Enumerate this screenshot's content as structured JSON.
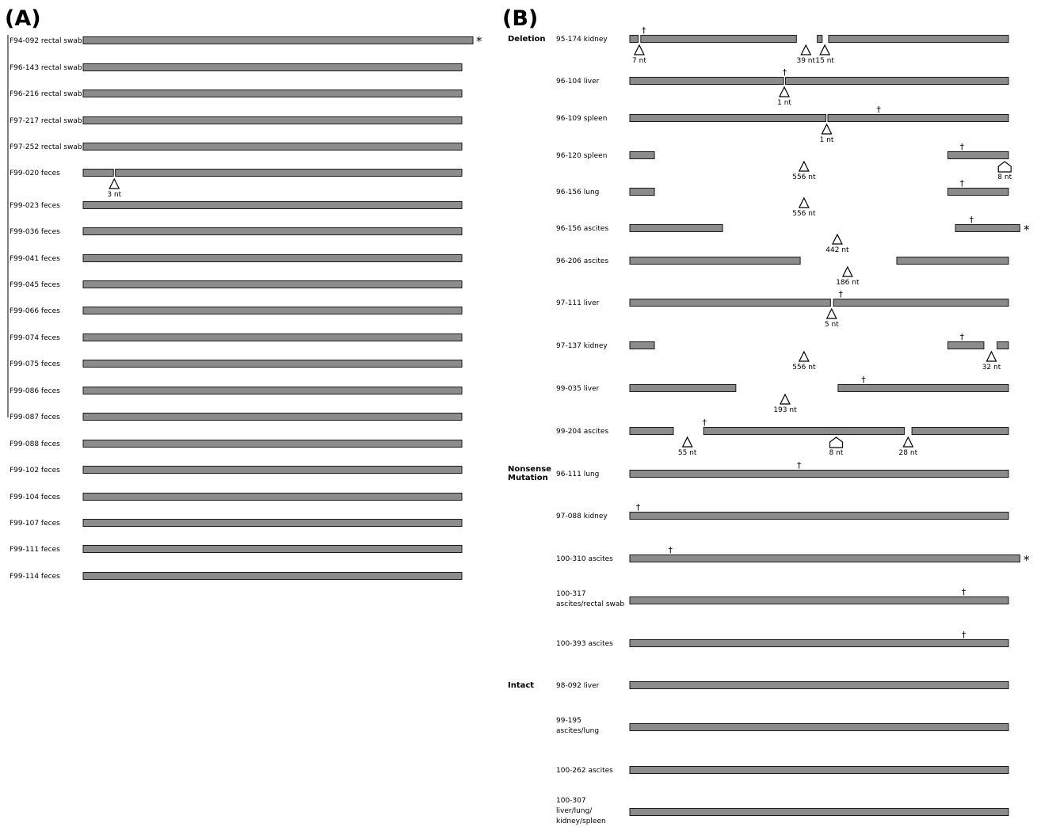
{
  "panels": [
    {
      "label": "(A)",
      "samples": [
        {
          "name": "F94-092 rectal swab",
          "segments": [
            [
              0,
              100
            ]
          ],
          "star": true,
          "deletions": []
        },
        {
          "name": "F96-143 rectal swab",
          "segments": [
            [
              0,
              100
            ]
          ],
          "deletions": []
        },
        {
          "name": "F96-216 rectal swab",
          "segments": [
            [
              0,
              100
            ]
          ],
          "deletions": []
        },
        {
          "name": "F97-217 rectal swab",
          "segments": [
            [
              0,
              100
            ]
          ],
          "deletions": []
        },
        {
          "name": "F97-252 rectal swab",
          "segments": [
            [
              0,
              100
            ]
          ],
          "deletions": []
        },
        {
          "name": "F99-020 feces",
          "segments": [
            [
              0,
              8
            ],
            [
              8.5,
              100
            ]
          ],
          "deletions": [
            {
              "pos": 8,
              "label": "3 nt",
              "shape": "triangle"
            }
          ]
        },
        {
          "name": "F99-023 feces",
          "segments": [
            [
              0,
              100
            ]
          ],
          "deletions": []
        },
        {
          "name": "F99-036 feces",
          "segments": [
            [
              0,
              100
            ]
          ],
          "deletions": []
        },
        {
          "name": "F99-041 feces",
          "segments": [
            [
              0,
              100
            ]
          ],
          "deletions": []
        },
        {
          "name": "F99-045 feces",
          "segments": [
            [
              0,
              100
            ]
          ],
          "deletions": []
        },
        {
          "name": "F99-066 feces",
          "segments": [
            [
              0,
              100
            ]
          ],
          "deletions": []
        },
        {
          "name": "F99-074 feces",
          "segments": [
            [
              0,
              100
            ]
          ],
          "deletions": []
        },
        {
          "name": "F99-075 feces",
          "segments": [
            [
              0,
              100
            ]
          ],
          "deletions": []
        },
        {
          "name": "F99-086 feces",
          "segments": [
            [
              0,
              100
            ]
          ],
          "deletions": []
        },
        {
          "name": "F99-087 feces",
          "segments": [
            [
              0,
              100
            ]
          ],
          "deletions": []
        },
        {
          "name": "F99-088 feces",
          "segments": [
            [
              0,
              100
            ]
          ],
          "deletions": []
        },
        {
          "name": "F99-102 feces",
          "segments": [
            [
              0,
              100
            ]
          ],
          "deletions": []
        },
        {
          "name": "F99-104 feces",
          "segments": [
            [
              0,
              100
            ]
          ],
          "deletions": []
        },
        {
          "name": "F99-107 feces",
          "segments": [
            [
              0,
              100
            ]
          ],
          "deletions": []
        },
        {
          "name": "F99-111 feces",
          "segments": [
            [
              0,
              100
            ]
          ],
          "deletions": []
        },
        {
          "name": "F99-114 feces",
          "segments": [
            [
              0,
              100
            ]
          ],
          "deletions": []
        }
      ]
    },
    {
      "label": "(B)",
      "groups": [
        {
          "label": [
            "Deletion"
          ],
          "first_sample": 0
        },
        {
          "label": [
            "Nonsense",
            "Mutation"
          ],
          "first_sample": 11
        },
        {
          "label": [
            "Intact"
          ],
          "first_sample": 16
        }
      ],
      "samples": [
        {
          "name": [
            "95-174 kidney"
          ],
          "segments": [
            [
              0,
              2.2
            ],
            [
              2.9,
              44
            ],
            [
              49.5,
              50.8
            ],
            [
              52.5,
              100
            ]
          ],
          "daggers": [
            3.5
          ],
          "deletions": [
            {
              "pos": 2.5,
              "label": "7 nt",
              "shape": "triangle"
            },
            {
              "pos": 46.5,
              "label": "39 nt",
              "shape": "triangle"
            },
            {
              "pos": 51.5,
              "label": "15 nt",
              "shape": "triangle"
            }
          ]
        },
        {
          "name": [
            "96-104 liver"
          ],
          "segments": [
            [
              0,
              40.6
            ],
            [
              41.1,
              100
            ]
          ],
          "daggers": [
            40.7
          ],
          "deletions": [
            {
              "pos": 40.8,
              "label": "1 nt",
              "shape": "triangle"
            }
          ]
        },
        {
          "name": [
            "96-109 spleen"
          ],
          "segments": [
            [
              0,
              51.8
            ],
            [
              52.3,
              100
            ]
          ],
          "daggers": [
            65.5
          ],
          "deletions": [
            {
              "pos": 52,
              "label": "1 nt",
              "shape": "triangle"
            }
          ]
        },
        {
          "name": [
            "96-120 spleen"
          ],
          "segments": [
            [
              0,
              6.5
            ],
            [
              84,
              100
            ]
          ],
          "daggers": [
            87.5
          ],
          "deletions": [
            {
              "pos": 46,
              "label": "556 nt",
              "shape": "triangle"
            },
            {
              "pos": 99,
              "label": "8 nt",
              "shape": "pentagon"
            }
          ]
        },
        {
          "name": [
            "96-156 lung"
          ],
          "segments": [
            [
              0,
              6.5
            ],
            [
              84,
              100
            ]
          ],
          "daggers": [
            87.5
          ],
          "deletions": [
            {
              "pos": 46,
              "label": "556 nt",
              "shape": "triangle"
            }
          ]
        },
        {
          "name": [
            "96-156 ascites"
          ],
          "segments": [
            [
              0,
              24.5
            ],
            [
              86,
              103
            ]
          ],
          "daggers": [
            90
          ],
          "star": true,
          "deletions": [
            {
              "pos": 54.8,
              "label": "442 nt",
              "shape": "triangle"
            }
          ]
        },
        {
          "name": [
            "96-206 ascites"
          ],
          "segments": [
            [
              0,
              45
            ],
            [
              70.5,
              100
            ]
          ],
          "daggers": [],
          "deletions": [
            {
              "pos": 57.5,
              "label": "186 nt",
              "shape": "triangle"
            }
          ]
        },
        {
          "name": [
            "97-111 liver"
          ],
          "segments": [
            [
              0,
              53
            ],
            [
              53.8,
              100
            ]
          ],
          "daggers": [
            55.5
          ],
          "deletions": [
            {
              "pos": 53.3,
              "label": "5 nt",
              "shape": "triangle"
            }
          ]
        },
        {
          "name": [
            "97-137 kidney"
          ],
          "segments": [
            [
              0,
              6.5
            ],
            [
              84,
              93.5
            ],
            [
              97,
              100
            ]
          ],
          "daggers": [
            87.5
          ],
          "deletions": [
            {
              "pos": 46,
              "label": "556 nt",
              "shape": "triangle"
            },
            {
              "pos": 95.5,
              "label": "32 nt",
              "shape": "triangle"
            }
          ]
        },
        {
          "name": [
            "99-035 liver"
          ],
          "segments": [
            [
              0,
              28
            ],
            [
              55,
              100
            ]
          ],
          "daggers": [
            61.5
          ],
          "deletions": [
            {
              "pos": 41,
              "label": "193 nt",
              "shape": "triangle"
            }
          ]
        },
        {
          "name": [
            "99-204 ascites"
          ],
          "segments": [
            [
              0,
              11.5
            ],
            [
              19.5,
              72.5
            ],
            [
              74.5,
              100
            ]
          ],
          "daggers": [
            19.5
          ],
          "deletions": [
            {
              "pos": 15.2,
              "label": "55 nt",
              "shape": "triangle"
            },
            {
              "pos": 54.5,
              "label": "8 nt",
              "shape": "pentagon"
            },
            {
              "pos": 73.5,
              "label": "28 nt",
              "shape": "triangle"
            }
          ]
        },
        {
          "name": [
            "96-111 lung"
          ],
          "segments": [
            [
              0,
              100
            ]
          ],
          "daggers": [
            44.5
          ],
          "deletions": []
        },
        {
          "name": [
            "97-088 kidney"
          ],
          "segments": [
            [
              0,
              100
            ]
          ],
          "daggers": [
            2
          ],
          "deletions": []
        },
        {
          "name": [
            "100-310 ascites"
          ],
          "segments": [
            [
              0,
              103
            ]
          ],
          "daggers": [
            10.5
          ],
          "star": true,
          "deletions": []
        },
        {
          "name": [
            "100-317",
            "ascites/rectal swab"
          ],
          "segments": [
            [
              0,
              100
            ]
          ],
          "daggers": [
            88
          ],
          "deletions": []
        },
        {
          "name": [
            "100-393 ascites"
          ],
          "segments": [
            [
              0,
              100
            ]
          ],
          "daggers": [
            88
          ],
          "deletions": []
        },
        {
          "name": [
            "98-092 liver"
          ],
          "segments": [
            [
              0,
              100
            ]
          ],
          "daggers": [],
          "deletions": []
        },
        {
          "name": [
            "99-195",
            "ascites/lung"
          ],
          "segments": [
            [
              0,
              100
            ]
          ],
          "daggers": [],
          "deletions": []
        },
        {
          "name": [
            "100-262 ascites"
          ],
          "segments": [
            [
              0,
              100
            ]
          ],
          "daggers": [],
          "deletions": []
        },
        {
          "name": [
            "100-307",
            "liver/lung/",
            "kidney/spleen"
          ],
          "segments": [
            [
              0,
              100
            ]
          ],
          "daggers": [],
          "deletions": []
        }
      ]
    }
  ],
  "symbols": {
    "dagger": "†",
    "star": "*"
  },
  "colors": {
    "bar_fill": "#8c8c8c",
    "bar_stroke": "#1a1a1a",
    "text": "#111111"
  }
}
